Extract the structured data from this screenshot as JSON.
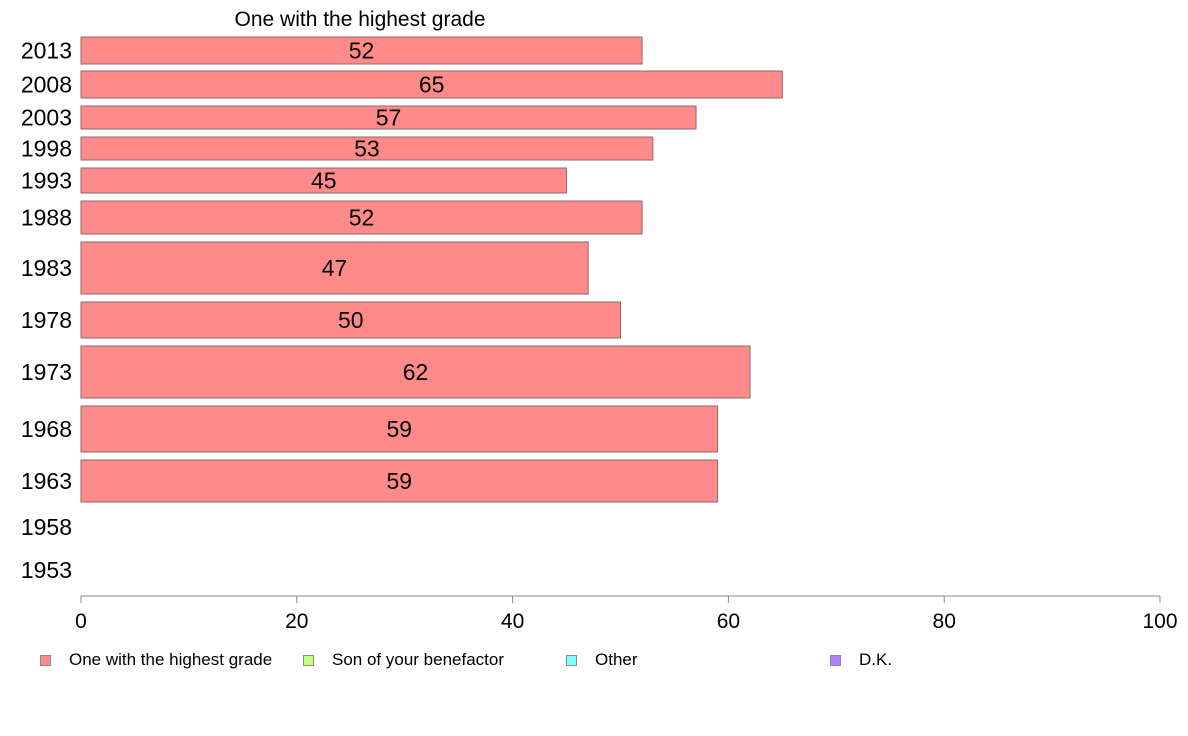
{
  "chart_data": {
    "type": "bar",
    "orientation": "horizontal",
    "title": "One with the highest grade",
    "categories": [
      "2013",
      "2008",
      "2003",
      "1998",
      "1993",
      "1988",
      "1983",
      "1978",
      "1973",
      "1968",
      "1963",
      "1958",
      "1953"
    ],
    "series": [
      {
        "name": "One with the highest grade",
        "color": "#ff8a8a",
        "values": [
          52,
          65,
          57,
          53,
          45,
          52,
          47,
          50,
          62,
          59,
          59,
          null,
          null
        ],
        "labels": [
          "52",
          "65",
          "57",
          "53",
          "45",
          "52",
          "47",
          "50",
          "62",
          "59",
          "59",
          "",
          ""
        ]
      },
      {
        "name": "Son of your benefactor",
        "color": "#c4ff7a",
        "values": [
          null,
          null,
          null,
          null,
          null,
          null,
          null,
          null,
          null,
          null,
          null,
          null,
          null
        ]
      },
      {
        "name": "Other",
        "color": "#7fffff",
        "values": [
          null,
          null,
          null,
          null,
          null,
          null,
          null,
          null,
          null,
          null,
          null,
          null,
          null
        ]
      },
      {
        "name": "D.K.",
        "color": "#b580ff",
        "values": [
          null,
          null,
          null,
          null,
          null,
          null,
          null,
          null,
          null,
          null,
          null,
          null,
          null
        ]
      }
    ],
    "xlim": [
      0,
      100
    ],
    "xticks": [
      "0",
      "20",
      "40",
      "60",
      "80",
      "100"
    ],
    "grid": false,
    "legend_position": "bottom"
  }
}
